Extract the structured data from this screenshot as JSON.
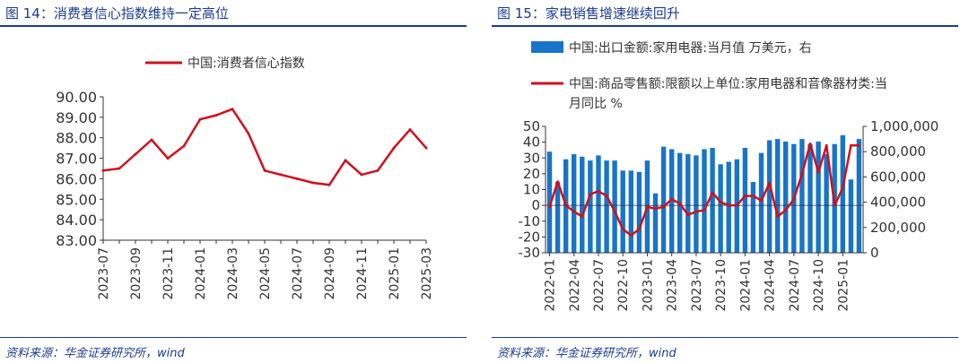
{
  "left": {
    "figure_title": "图 14：消费者信心指数维持一定高位",
    "source": "资料来源：华金证券研究所，wind"
  },
  "right": {
    "figure_title": "图 15：家电销售增速继续回升",
    "source": "资料来源：华金证券研究所，wind"
  },
  "colors": {
    "title_blue": "#1a3c8c",
    "line_red": "#d0101c",
    "bar_blue": "#1874c8",
    "axis": "#333333"
  },
  "chart_data": [
    {
      "type": "line",
      "title": "",
      "legend_position": "top",
      "xlabel": "",
      "ylabel": "",
      "ylim": [
        83,
        90
      ],
      "yticks": [
        "83.00",
        "84.00",
        "85.00",
        "86.00",
        "87.00",
        "88.00",
        "89.00",
        "90.00"
      ],
      "xtick_labels": [
        "2023-07",
        "2023-09",
        "2023-11",
        "2024-01",
        "2024-03",
        "2024-05",
        "2024-07",
        "2024-09",
        "2024-11",
        "2025-01",
        "2025-03"
      ],
      "x": [
        "2023-07",
        "2023-08",
        "2023-09",
        "2023-10",
        "2023-11",
        "2023-12",
        "2024-01",
        "2024-02",
        "2024-03",
        "2024-04",
        "2024-05",
        "2024-06",
        "2024-07",
        "2024-08",
        "2024-09",
        "2024-10",
        "2024-11",
        "2024-12",
        "2025-01",
        "2025-02",
        "2025-03"
      ],
      "series": [
        {
          "name": "中国:消费者信心指数",
          "values": [
            86.4,
            86.5,
            87.2,
            87.9,
            87.0,
            87.6,
            88.9,
            89.1,
            89.4,
            88.2,
            86.4,
            86.2,
            86.0,
            85.8,
            85.7,
            86.9,
            86.2,
            86.4,
            87.5,
            88.4,
            87.5
          ]
        }
      ]
    },
    {
      "type": "bar",
      "title": "",
      "legend_position": "top",
      "xlabel": "",
      "ylabel": "",
      "ylim_left": [
        -30,
        50
      ],
      "ylim_right": [
        0,
        1000000
      ],
      "yticks_left": [
        "-30",
        "-20",
        "-10",
        "0",
        "10",
        "20",
        "30",
        "40",
        "50"
      ],
      "yticks_right": [
        "0",
        "200,000",
        "400,000",
        "600,000",
        "800,000",
        "1,000,000"
      ],
      "xtick_labels": [
        "2022-01",
        "2022-04",
        "2022-07",
        "2022-10",
        "2023-01",
        "2023-04",
        "2023-07",
        "2023-10",
        "2024-01",
        "2024-04",
        "2024-07",
        "2024-10",
        "2025-01"
      ],
      "x": [
        "2022-01",
        "2022-02",
        "2022-03",
        "2022-04",
        "2022-05",
        "2022-06",
        "2022-07",
        "2022-08",
        "2022-09",
        "2022-10",
        "2022-11",
        "2022-12",
        "2023-01",
        "2023-02",
        "2023-03",
        "2023-04",
        "2023-05",
        "2023-06",
        "2023-07",
        "2023-08",
        "2023-09",
        "2023-10",
        "2023-11",
        "2023-12",
        "2024-01",
        "2024-02",
        "2024-03",
        "2024-04",
        "2024-05",
        "2024-06",
        "2024-07",
        "2024-08",
        "2024-09",
        "2024-10",
        "2024-11",
        "2024-12",
        "2025-01",
        "2025-02",
        "2025-03"
      ],
      "series": [
        {
          "name": "中国:出口金额:家用电器:当月值 万美元，右",
          "kind": "bar",
          "axis": "right",
          "values": [
            800000,
            560000,
            740000,
            780000,
            760000,
            730000,
            770000,
            730000,
            730000,
            650000,
            650000,
            640000,
            730000,
            470000,
            840000,
            820000,
            790000,
            780000,
            770000,
            820000,
            830000,
            700000,
            720000,
            740000,
            830000,
            560000,
            790000,
            890000,
            900000,
            880000,
            860000,
            900000,
            860000,
            880000,
            780000,
            860000,
            930000,
            580000,
            900000
          ]
        },
        {
          "name": "中国:商品零售额:限额以上单位:家用电器和音像器材类:当月同比 %",
          "kind": "line",
          "axis": "left",
          "values": [
            -1,
            15,
            0,
            -4,
            -7,
            7,
            9,
            6,
            -4,
            -15,
            -19,
            -15,
            -1,
            -2,
            -1,
            4,
            1,
            -6,
            -4,
            -3,
            8,
            2,
            0,
            0,
            6,
            6,
            3,
            14,
            -7,
            -3,
            4,
            20,
            39,
            21,
            38,
            0,
            11,
            38,
            38
          ]
        }
      ]
    }
  ]
}
